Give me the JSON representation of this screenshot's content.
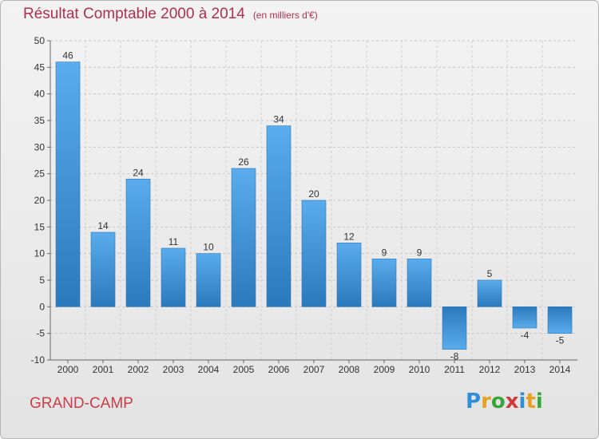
{
  "title": "Résultat Comptable 2000 à 2014",
  "unit": "(en milliers d'€)",
  "commune": "GRAND-CAMP",
  "brand": {
    "text": "Proxiti",
    "letters": [
      {
        "ch": "P",
        "color": "#2e8fd6"
      },
      {
        "ch": "r",
        "color": "#e8a020"
      },
      {
        "ch": "o",
        "color": "#3aa53a"
      },
      {
        "ch": "x",
        "color": "#d23a3a"
      },
      {
        "ch": "i",
        "color": "#2e8fd6"
      },
      {
        "ch": "t",
        "color": "#e8a020"
      },
      {
        "ch": "i",
        "color": "#3aa53a"
      }
    ]
  },
  "colors": {
    "bar": "#3b8fd6",
    "bar_light": "#5aacec",
    "bar_dark": "#2a79bd",
    "title": "#b02f4e",
    "commune": "#cf3b46",
    "grid": "#c8c8c8"
  },
  "chart_data": {
    "type": "bar",
    "categories": [
      "2000",
      "2001",
      "2002",
      "2003",
      "2004",
      "2005",
      "2006",
      "2007",
      "2008",
      "2009",
      "2010",
      "2011",
      "2012",
      "2013",
      "2014"
    ],
    "values": [
      46,
      14,
      24,
      11,
      10,
      26,
      34,
      20,
      12,
      9,
      9,
      -8,
      5,
      -4,
      -5
    ],
    "ylim": [
      -10,
      50
    ],
    "yticks": [
      -10,
      -5,
      0,
      5,
      10,
      15,
      20,
      25,
      30,
      35,
      40,
      45,
      50
    ],
    "grid": "horizontal dashed",
    "legend": "none"
  }
}
